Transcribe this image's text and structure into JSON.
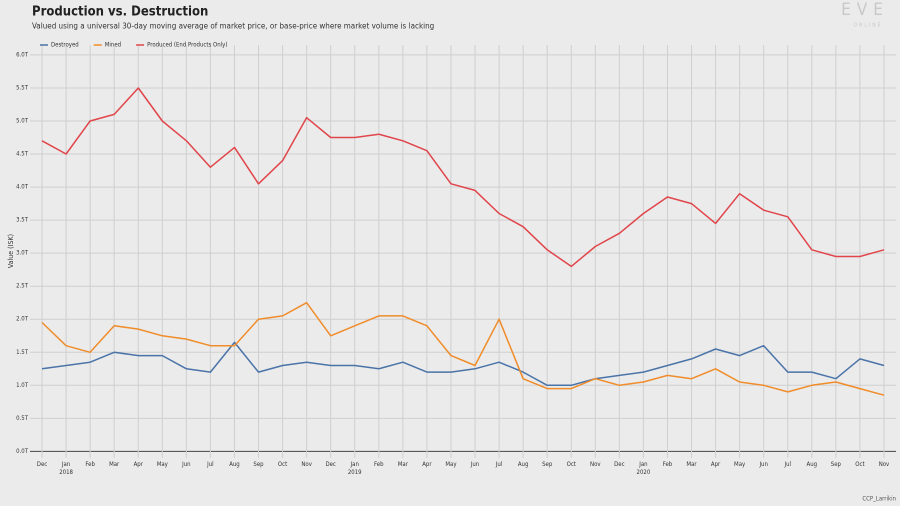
{
  "chart_data": {
    "type": "line",
    "title": "Production vs. Destruction",
    "subtitle": "Valued using a universal 30-day moving average of market price, or base-price where market volume is lacking",
    "y_label": "Value (ISK)",
    "logo": "EVE",
    "logo_sub": "ONLINE",
    "credit": "CCP_Larrikin",
    "categories": [
      "Dec",
      "Jan 2018",
      "Feb",
      "Mar",
      "Apr",
      "May",
      "Jun",
      "Jul",
      "Aug",
      "Sep",
      "Oct",
      "Nov",
      "Dec",
      "Jan 2019",
      "Feb",
      "Mar",
      "Apr",
      "May",
      "Jun",
      "Jul",
      "Aug",
      "Sep",
      "Oct",
      "Nov",
      "Dec",
      "Jan 2020",
      "Feb",
      "Mar",
      "Apr",
      "May",
      "Jun",
      "Jul",
      "Aug",
      "Sep",
      "Oct",
      "Nov"
    ],
    "series": [
      {
        "name": "Destroyed",
        "color": "#4a74a8",
        "values": [
          1.25,
          1.3,
          1.35,
          1.5,
          1.45,
          1.45,
          1.25,
          1.2,
          1.65,
          1.2,
          1.3,
          1.35,
          1.3,
          1.3,
          1.25,
          1.35,
          1.2,
          1.2,
          1.25,
          1.35,
          1.2,
          1.0,
          1.0,
          1.1,
          1.15,
          1.2,
          1.3,
          1.4,
          1.55,
          1.45,
          1.6,
          1.2,
          1.2,
          1.1,
          1.4,
          1.3
        ]
      },
      {
        "name": "Mined",
        "color": "#f08c2a",
        "values": [
          1.95,
          1.6,
          1.5,
          1.9,
          1.85,
          1.75,
          1.7,
          1.6,
          1.6,
          2.0,
          2.05,
          2.25,
          1.75,
          1.9,
          2.05,
          2.05,
          1.9,
          1.45,
          1.3,
          2.0,
          1.1,
          0.95,
          0.95,
          1.1,
          1.0,
          1.05,
          1.15,
          1.1,
          1.25,
          1.05,
          1.0,
          0.9,
          1.0,
          1.05,
          0.95,
          0.85
        ]
      },
      {
        "name": "Produced (End Products Only)",
        "color": "#e0454a",
        "values": [
          4.7,
          4.5,
          5.0,
          5.1,
          5.5,
          5.0,
          4.7,
          4.3,
          4.6,
          4.05,
          4.4,
          5.05,
          4.75,
          4.75,
          4.8,
          4.7,
          4.55,
          4.05,
          3.95,
          3.6,
          3.4,
          3.05,
          2.8,
          3.1,
          3.3,
          3.6,
          3.85,
          3.75,
          3.45,
          3.9,
          3.65,
          3.55,
          3.05,
          2.95,
          2.95,
          3.05
        ]
      }
    ],
    "ylim": [
      -0.1,
      6.15
    ],
    "yticks": [
      {
        "value": 0,
        "label": "0.0T"
      },
      {
        "value": 0.5,
        "label": "0.5T"
      },
      {
        "value": 1,
        "label": "1.0T"
      },
      {
        "value": 1.5,
        "label": "1.5T"
      },
      {
        "value": 2,
        "label": "2.0T"
      },
      {
        "value": 2.5,
        "label": "2.5T"
      },
      {
        "value": 3,
        "label": "3.0T"
      },
      {
        "value": 3.5,
        "label": "3.5T"
      },
      {
        "value": 4,
        "label": "4.0T"
      },
      {
        "value": 4.5,
        "label": "4.5T"
      },
      {
        "value": 5,
        "label": "5.0T"
      },
      {
        "value": 5.5,
        "label": "5.5T"
      },
      {
        "value": 6,
        "label": "6.0T"
      }
    ],
    "grid": true,
    "legend": "top-left"
  }
}
